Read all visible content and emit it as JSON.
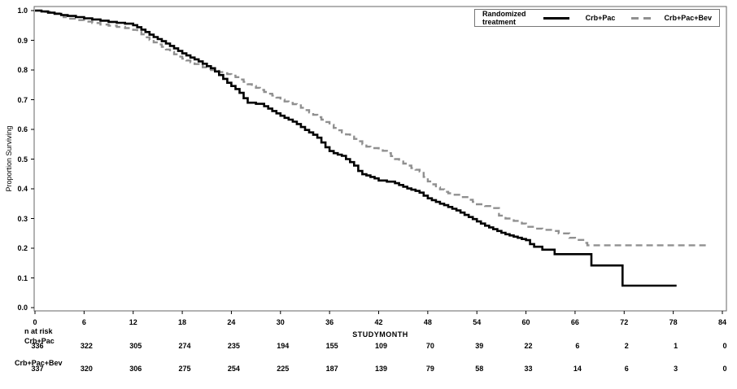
{
  "chart_data": {
    "type": "line",
    "subtype": "kaplan_meier_step",
    "title": "",
    "xlabel": "STUDYMONTH",
    "ylabel": "Proportion Surviving",
    "xlim": [
      0,
      84
    ],
    "ylim": [
      0.0,
      1.0
    ],
    "x_ticks": [
      0,
      6,
      12,
      18,
      24,
      30,
      36,
      42,
      48,
      54,
      60,
      66,
      72,
      78,
      84
    ],
    "y_ticks": [
      0.0,
      0.1,
      0.2,
      0.3,
      0.4,
      0.5,
      0.6,
      0.7,
      0.8,
      0.9,
      1.0
    ],
    "grid": false,
    "legend": {
      "position": "top-right-inside",
      "title": "Randomized treatment",
      "entries": [
        {
          "label": "Crb+Pac",
          "style": "solid",
          "color": "#000000"
        },
        {
          "label": "Crb+Pac+Bev",
          "style": "dashed",
          "color": "#909090"
        }
      ]
    },
    "series": [
      {
        "name": "Crb+Pac",
        "color": "#000000",
        "line_style": "solid",
        "line_width": 2.6,
        "end_x": 78.4,
        "final_value": 0.074,
        "points": [
          [
            0,
            1.0
          ],
          [
            0.8,
            0.997
          ],
          [
            1.6,
            0.993
          ],
          [
            2.4,
            0.989
          ],
          [
            3.2,
            0.985
          ],
          [
            4,
            0.982
          ],
          [
            5,
            0.978
          ],
          [
            6,
            0.974
          ],
          [
            7,
            0.97
          ],
          [
            8,
            0.966
          ],
          [
            9,
            0.962
          ],
          [
            10,
            0.959
          ],
          [
            11,
            0.956
          ],
          [
            12,
            0.951
          ],
          [
            12.5,
            0.944
          ],
          [
            13,
            0.936
          ],
          [
            13.5,
            0.928
          ],
          [
            14,
            0.919
          ],
          [
            14.5,
            0.911
          ],
          [
            15,
            0.904
          ],
          [
            15.5,
            0.897
          ],
          [
            16,
            0.889
          ],
          [
            16.5,
            0.881
          ],
          [
            17,
            0.873
          ],
          [
            17.5,
            0.864
          ],
          [
            18,
            0.856
          ],
          [
            18.5,
            0.849
          ],
          [
            19,
            0.842
          ],
          [
            19.5,
            0.836
          ],
          [
            20,
            0.829
          ],
          [
            20.5,
            0.821
          ],
          [
            21,
            0.813
          ],
          [
            21.5,
            0.806
          ],
          [
            22,
            0.795
          ],
          [
            22.5,
            0.783
          ],
          [
            23,
            0.77
          ],
          [
            23.5,
            0.757
          ],
          [
            24,
            0.746
          ],
          [
            24.5,
            0.736
          ],
          [
            25,
            0.723
          ],
          [
            25.5,
            0.705
          ],
          [
            26,
            0.69
          ],
          [
            27,
            0.686
          ],
          [
            28,
            0.678
          ],
          [
            28.5,
            0.67
          ],
          [
            29,
            0.662
          ],
          [
            29.5,
            0.654
          ],
          [
            30,
            0.646
          ],
          [
            30.5,
            0.639
          ],
          [
            31,
            0.633
          ],
          [
            31.5,
            0.626
          ],
          [
            32,
            0.618
          ],
          [
            32.5,
            0.608
          ],
          [
            33,
            0.598
          ],
          [
            33.5,
            0.59
          ],
          [
            34,
            0.582
          ],
          [
            34.5,
            0.572
          ],
          [
            35,
            0.556
          ],
          [
            35.5,
            0.54
          ],
          [
            36,
            0.527
          ],
          [
            36.5,
            0.52
          ],
          [
            37,
            0.515
          ],
          [
            37.5,
            0.511
          ],
          [
            38,
            0.5
          ],
          [
            38.5,
            0.49
          ],
          [
            39,
            0.478
          ],
          [
            39.5,
            0.46
          ],
          [
            40,
            0.449
          ],
          [
            40.5,
            0.445
          ],
          [
            41,
            0.44
          ],
          [
            41.5,
            0.435
          ],
          [
            42,
            0.428
          ],
          [
            43,
            0.424
          ],
          [
            44,
            0.419
          ],
          [
            44.5,
            0.413
          ],
          [
            45,
            0.407
          ],
          [
            45.5,
            0.401
          ],
          [
            46,
            0.397
          ],
          [
            46.5,
            0.393
          ],
          [
            47,
            0.387
          ],
          [
            47.5,
            0.377
          ],
          [
            48,
            0.368
          ],
          [
            48.5,
            0.362
          ],
          [
            49,
            0.356
          ],
          [
            49.5,
            0.35
          ],
          [
            50,
            0.345
          ],
          [
            50.5,
            0.339
          ],
          [
            51,
            0.333
          ],
          [
            51.5,
            0.327
          ],
          [
            52,
            0.32
          ],
          [
            52.5,
            0.312
          ],
          [
            53,
            0.305
          ],
          [
            53.5,
            0.298
          ],
          [
            54,
            0.29
          ],
          [
            54.5,
            0.283
          ],
          [
            55,
            0.276
          ],
          [
            55.5,
            0.27
          ],
          [
            56,
            0.264
          ],
          [
            56.5,
            0.258
          ],
          [
            57,
            0.252
          ],
          [
            57.5,
            0.247
          ],
          [
            58,
            0.243
          ],
          [
            58.5,
            0.239
          ],
          [
            59,
            0.235
          ],
          [
            59.5,
            0.231
          ],
          [
            60,
            0.227
          ],
          [
            60.5,
            0.214
          ],
          [
            61,
            0.205
          ],
          [
            62,
            0.195
          ],
          [
            63.5,
            0.18
          ],
          [
            68,
            0.142
          ],
          [
            71.8,
            0.074
          ]
        ]
      },
      {
        "name": "Crb+Pac+Bev",
        "color": "#909090",
        "line_style": "dashed",
        "line_width": 2.4,
        "end_x": 82.2,
        "final_value": 0.21,
        "points": [
          [
            0,
            1.0
          ],
          [
            1,
            0.996
          ],
          [
            2,
            0.991
          ],
          [
            3,
            0.985
          ],
          [
            3.5,
            0.978
          ],
          [
            4,
            0.973
          ],
          [
            5,
            0.968
          ],
          [
            6,
            0.963
          ],
          [
            7,
            0.958
          ],
          [
            8,
            0.953
          ],
          [
            9,
            0.949
          ],
          [
            10,
            0.945
          ],
          [
            11,
            0.941
          ],
          [
            12,
            0.935
          ],
          [
            12.5,
            0.928
          ],
          [
            13,
            0.92
          ],
          [
            13.5,
            0.91
          ],
          [
            14,
            0.901
          ],
          [
            14.5,
            0.893
          ],
          [
            15,
            0.886
          ],
          [
            15.5,
            0.878
          ],
          [
            16,
            0.869
          ],
          [
            16.5,
            0.861
          ],
          [
            17,
            0.853
          ],
          [
            17.5,
            0.845
          ],
          [
            18,
            0.838
          ],
          [
            18.5,
            0.832
          ],
          [
            19,
            0.826
          ],
          [
            19.5,
            0.82
          ],
          [
            20,
            0.814
          ],
          [
            20.5,
            0.809
          ],
          [
            21,
            0.804
          ],
          [
            21.5,
            0.8
          ],
          [
            22,
            0.797
          ],
          [
            22.5,
            0.793
          ],
          [
            23,
            0.789
          ],
          [
            23.5,
            0.786
          ],
          [
            24,
            0.781
          ],
          [
            24.5,
            0.776
          ],
          [
            25,
            0.768
          ],
          [
            25.5,
            0.76
          ],
          [
            26,
            0.752
          ],
          [
            26.5,
            0.746
          ],
          [
            27,
            0.74
          ],
          [
            27.5,
            0.733
          ],
          [
            28,
            0.726
          ],
          [
            28.5,
            0.72
          ],
          [
            29,
            0.714
          ],
          [
            29.5,
            0.707
          ],
          [
            30,
            0.7
          ],
          [
            30.5,
            0.694
          ],
          [
            31,
            0.689
          ],
          [
            31.5,
            0.685
          ],
          [
            32,
            0.681
          ],
          [
            32.5,
            0.673
          ],
          [
            33,
            0.665
          ],
          [
            33.5,
            0.657
          ],
          [
            34,
            0.649
          ],
          [
            34.5,
            0.641
          ],
          [
            35,
            0.633
          ],
          [
            35.5,
            0.625
          ],
          [
            36,
            0.615
          ],
          [
            36.5,
            0.605
          ],
          [
            37,
            0.597
          ],
          [
            37.5,
            0.59
          ],
          [
            38,
            0.583
          ],
          [
            38.5,
            0.576
          ],
          [
            39,
            0.568
          ],
          [
            39.5,
            0.56
          ],
          [
            40,
            0.55
          ],
          [
            40.5,
            0.542
          ],
          [
            41,
            0.537
          ],
          [
            42,
            0.533
          ],
          [
            42.5,
            0.528
          ],
          [
            43,
            0.52
          ],
          [
            43.5,
            0.51
          ],
          [
            44,
            0.5
          ],
          [
            44.5,
            0.492
          ],
          [
            45,
            0.485
          ],
          [
            45.5,
            0.478
          ],
          [
            46,
            0.47
          ],
          [
            46.5,
            0.464
          ],
          [
            47,
            0.458
          ],
          [
            47.5,
            0.44
          ],
          [
            48,
            0.425
          ],
          [
            48.5,
            0.415
          ],
          [
            49,
            0.405
          ],
          [
            49.5,
            0.398
          ],
          [
            50,
            0.39
          ],
          [
            50.5,
            0.385
          ],
          [
            51,
            0.38
          ],
          [
            52,
            0.372
          ],
          [
            53,
            0.363
          ],
          [
            53.5,
            0.356
          ],
          [
            54,
            0.348
          ],
          [
            55,
            0.342
          ],
          [
            56,
            0.335
          ],
          [
            56.7,
            0.31
          ],
          [
            57.5,
            0.3
          ],
          [
            58.5,
            0.292
          ],
          [
            59.5,
            0.283
          ],
          [
            60,
            0.272
          ],
          [
            61,
            0.266
          ],
          [
            62,
            0.262
          ],
          [
            63.3,
            0.258
          ],
          [
            64,
            0.25
          ],
          [
            65.3,
            0.235
          ],
          [
            66,
            0.228
          ],
          [
            67,
            0.218
          ],
          [
            67.5,
            0.21
          ]
        ]
      }
    ],
    "risk_table": {
      "header": "n at risk",
      "time_points": [
        0,
        6,
        12,
        18,
        24,
        30,
        36,
        42,
        48,
        54,
        60,
        66,
        72,
        78,
        84
      ],
      "rows": [
        {
          "label": "Crb+Pac",
          "values": [
            336,
            322,
            305,
            274,
            235,
            194,
            155,
            109,
            70,
            39,
            22,
            6,
            2,
            1,
            0
          ]
        },
        {
          "label": "Crb+Pac+Bev",
          "values": [
            337,
            320,
            306,
            275,
            254,
            225,
            187,
            139,
            79,
            58,
            33,
            14,
            6,
            3,
            0
          ]
        }
      ]
    }
  },
  "colors": {
    "background": "#ffffff",
    "frame": "#666666",
    "tick": "#000000",
    "text": "#000000",
    "curve_primary": "#000000",
    "curve_secondary": "#909090"
  }
}
